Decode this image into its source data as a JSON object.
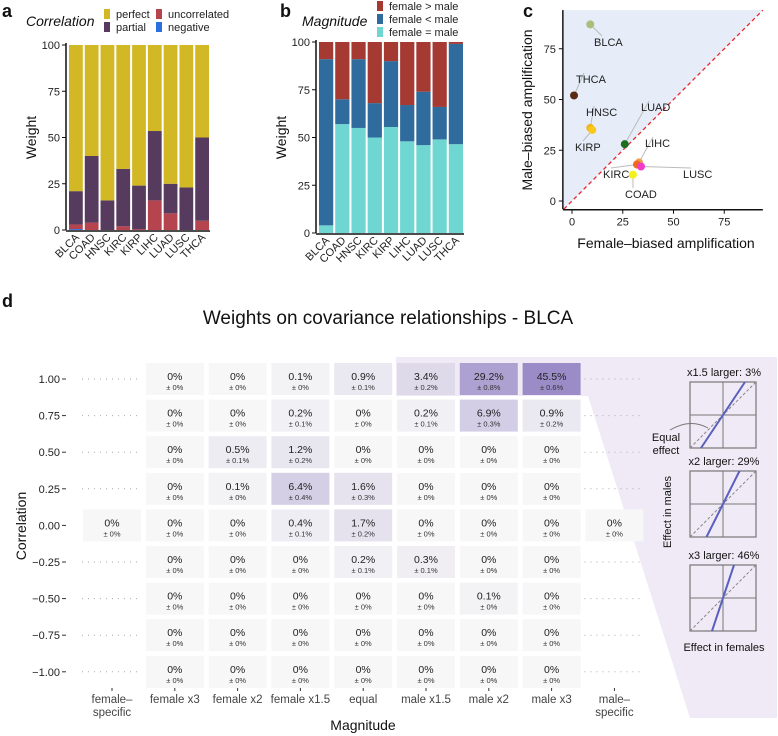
{
  "panels": {
    "a": "a",
    "b": "b",
    "c": "c",
    "d": "d"
  },
  "chart_data": [
    {
      "type": "bar",
      "stacked": true,
      "panel": "a",
      "legend_title": "Correlation",
      "ylabel": "Weight",
      "ylim": [
        0,
        100
      ],
      "yticks": [
        0,
        25,
        50,
        75,
        100
      ],
      "categories": [
        "BLCA",
        "COAD",
        "HNSC",
        "KIRC",
        "KIRP",
        "LIHC",
        "LUAD",
        "LUSC",
        "THCA"
      ],
      "series": [
        {
          "name": "negative",
          "color": "#2c6fe0",
          "values": [
            0.5,
            0,
            0,
            0,
            0,
            0,
            0,
            0,
            0
          ]
        },
        {
          "name": "uncorrelated",
          "color": "#b5444f",
          "values": [
            2.5,
            4,
            0,
            2,
            0.5,
            16,
            9,
            0,
            5
          ]
        },
        {
          "name": "partial",
          "color": "#563b5e",
          "values": [
            18,
            36,
            16,
            31,
            23.5,
            37.5,
            16,
            23,
            45
          ]
        },
        {
          "name": "perfect",
          "color": "#d1b824",
          "values": [
            79,
            60,
            84,
            67,
            76,
            46.5,
            75,
            77,
            50
          ]
        }
      ],
      "legend_order": [
        "perfect",
        "partial",
        "uncorrelated",
        "negative"
      ]
    },
    {
      "type": "bar",
      "stacked": true,
      "panel": "b",
      "legend_title": "Magnitude",
      "ylabel": "Weight",
      "ylim": [
        0,
        100
      ],
      "yticks": [
        0,
        25,
        50,
        75,
        100
      ],
      "categories": [
        "BLCA",
        "COAD",
        "HNSC",
        "KIRC",
        "KIRP",
        "LIHC",
        "LUAD",
        "LUSC",
        "THCA"
      ],
      "series": [
        {
          "name": "female = male",
          "color": "#6fd6d1",
          "values": [
            4,
            57,
            55,
            50,
            55.5,
            48,
            46,
            49,
            46.5
          ]
        },
        {
          "name": "female < male",
          "color": "#2f6b9c",
          "values": [
            87,
            13,
            36,
            18,
            34.5,
            19,
            28,
            17,
            52.5
          ]
        },
        {
          "name": "female > male",
          "color": "#a53a33",
          "values": [
            9,
            30,
            9,
            32,
            10,
            33,
            26,
            34,
            1
          ]
        }
      ],
      "legend_order": [
        "female > male",
        "female < male",
        "female = male"
      ]
    },
    {
      "type": "scatter",
      "panel": "c",
      "xlabel": "Female–biased amplification",
      "ylabel": "Male–biased amplification",
      "xlim": [
        -4,
        94
      ],
      "ylim": [
        -4,
        94
      ],
      "xticks": [
        0,
        25,
        50,
        75
      ],
      "yticks": [
        0,
        25,
        50,
        75
      ],
      "diagonal_color": "#e8262b",
      "shade_color": "#e6edf9",
      "points": [
        {
          "label": "BLCA",
          "x": 9,
          "y": 87,
          "color": "#a8c07a"
        },
        {
          "label": "THCA",
          "x": 1,
          "y": 52,
          "color": "#5a2a12"
        },
        {
          "label": "HNSC",
          "x": 9,
          "y": 36,
          "color": "#f3b51e"
        },
        {
          "label": "KIRP",
          "x": 10,
          "y": 35,
          "color": "#f7c91a"
        },
        {
          "label": "LUAD",
          "x": 26,
          "y": 28,
          "color": "#1f6e1f"
        },
        {
          "label": "LIHC",
          "x": 33,
          "y": 19,
          "color": "#f0a050"
        },
        {
          "label": "KIRC",
          "x": 32,
          "y": 18,
          "color": "#f26a1e"
        },
        {
          "label": "LUSC",
          "x": 34,
          "y": 17,
          "color": "#f03cc8"
        },
        {
          "label": "COAD",
          "x": 30,
          "y": 13,
          "color": "#f3f01a"
        }
      ]
    },
    {
      "type": "heatmap",
      "panel": "d",
      "title": "Weights on covariance relationships - BLCA",
      "xlabel": "Magnitude",
      "ylabel": "Correlation",
      "columns": [
        "female–\nspecific",
        "female x3",
        "female x2",
        "female x1.5",
        "equal",
        "male x1.5",
        "male x2",
        "male x3",
        "male–\nspecific"
      ],
      "rows": [
        {
          "label": "1.00",
          "values": [
            null,
            0,
            0,
            0.1,
            0.9,
            3.4,
            29.2,
            45.5,
            null
          ],
          "sd": [
            null,
            0,
            0,
            0,
            0.1,
            0.2,
            0.8,
            0.6,
            null
          ]
        },
        {
          "label": "0.75",
          "values": [
            null,
            0,
            0,
            0.2,
            0,
            0.2,
            6.9,
            0.9,
            null
          ],
          "sd": [
            null,
            0,
            0,
            0.1,
            0,
            0.1,
            0.3,
            0.2,
            null
          ]
        },
        {
          "label": "0.50",
          "values": [
            null,
            0,
            0.5,
            1.2,
            0,
            0,
            0,
            0,
            null
          ],
          "sd": [
            null,
            0,
            0.1,
            0.2,
            0,
            0,
            0,
            0,
            null
          ]
        },
        {
          "label": "0.25",
          "values": [
            null,
            0,
            0.1,
            6.4,
            1.6,
            0,
            0,
            0,
            null
          ],
          "sd": [
            null,
            0,
            0,
            0.4,
            0.3,
            0,
            0,
            0,
            null
          ]
        },
        {
          "label": "0.00",
          "values": [
            0,
            0,
            0,
            0.4,
            1.7,
            0,
            0,
            0,
            0
          ],
          "sd": [
            0,
            0,
            0,
            0.1,
            0.2,
            0,
            0,
            0,
            0
          ]
        },
        {
          "label": "−0.25",
          "values": [
            null,
            0,
            0,
            0,
            0.2,
            0.3,
            0,
            0,
            null
          ],
          "sd": [
            null,
            0,
            0,
            0,
            0.1,
            0.1,
            0,
            0,
            null
          ]
        },
        {
          "label": "−0.50",
          "values": [
            null,
            0,
            0,
            0,
            0,
            0,
            0.1,
            0,
            null
          ],
          "sd": [
            null,
            0,
            0,
            0,
            0,
            0,
            0,
            0,
            null
          ]
        },
        {
          "label": "−0.75",
          "values": [
            null,
            0,
            0,
            0,
            0,
            0,
            0,
            0,
            null
          ],
          "sd": [
            null,
            0,
            0,
            0,
            0,
            0,
            0,
            0,
            null
          ]
        },
        {
          "label": "−1.00",
          "values": [
            null,
            0,
            0,
            0,
            0,
            0,
            0,
            0,
            null
          ],
          "sd": [
            null,
            0,
            0,
            0,
            0,
            0,
            0,
            0,
            null
          ]
        }
      ],
      "color_low": "#f7f7f7",
      "color_high": "#9b8cc8",
      "insets": {
        "titles": [
          "x1.5 larger: 3%",
          "x2 larger: 29%",
          "x3 larger: 46%"
        ],
        "slopes": [
          1.5,
          2,
          3
        ],
        "annotation": "Equal\neffect",
        "ylabel": "Effect in males",
        "xlabel": "Effect in females",
        "line_color": "#5b5fc0"
      }
    }
  ]
}
